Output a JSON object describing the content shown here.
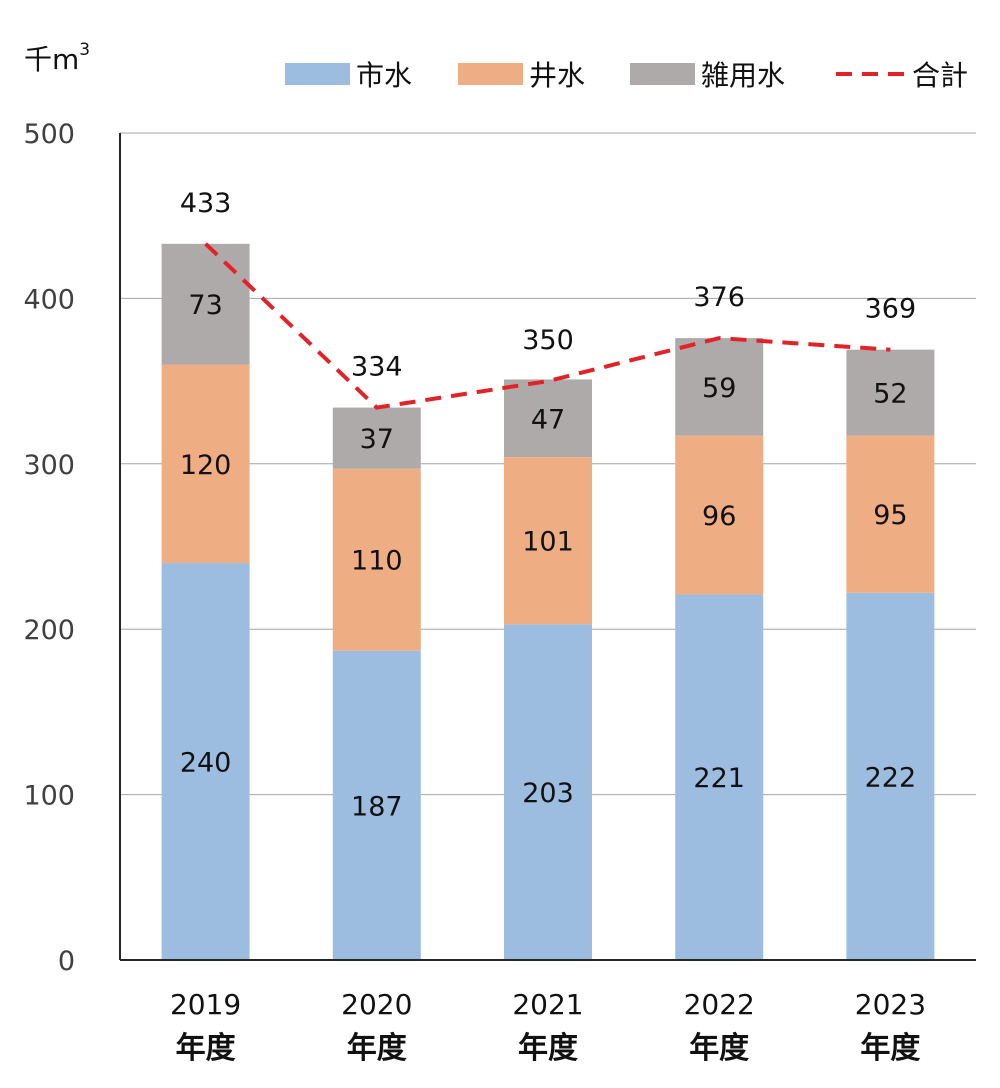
{
  "chart_data": {
    "type": "bar",
    "stacked": true,
    "unit_label": "千m",
    "unit_sup": "3",
    "categories": [
      {
        "year": "2019",
        "suffix": "年度"
      },
      {
        "year": "2020",
        "suffix": "年度"
      },
      {
        "year": "2021",
        "suffix": "年度"
      },
      {
        "year": "2022",
        "suffix": "年度"
      },
      {
        "year": "2023",
        "suffix": "年度"
      }
    ],
    "series": [
      {
        "name": "市水",
        "color": "#9dbde0",
        "values": [
          240,
          187,
          203,
          221,
          222
        ]
      },
      {
        "name": "井水",
        "color": "#efad83",
        "values": [
          120,
          110,
          101,
          96,
          95
        ]
      },
      {
        "name": "雑用水",
        "color": "#aeaaaa",
        "values": [
          73,
          37,
          47,
          59,
          52
        ]
      }
    ],
    "total": {
      "name": "合計",
      "color": "#e32227",
      "style": "dashed",
      "values": [
        433,
        334,
        350,
        376,
        369
      ]
    },
    "ylim": [
      0,
      500
    ],
    "yticks": [
      "0",
      "100",
      "200",
      "300",
      "400",
      "500"
    ],
    "grid": true,
    "legend": "top"
  }
}
